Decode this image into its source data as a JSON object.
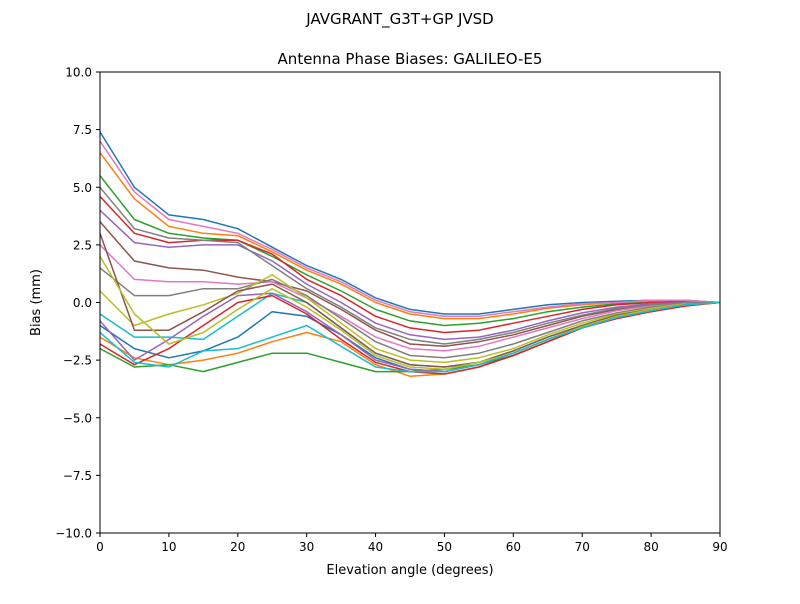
{
  "figure": {
    "suptitle": "JAVGRANT_G3T+GP JVSD"
  },
  "chart_data": {
    "type": "line",
    "title": "Antenna Phase Biases: GALILEO-E5",
    "xlabel": "Elevation angle (degrees)",
    "ylabel": "Bias (mm)",
    "xlim": [
      0,
      90
    ],
    "ylim": [
      -10,
      10
    ],
    "grid": false,
    "legend": "none",
    "xticks": [
      0,
      10,
      20,
      30,
      40,
      50,
      60,
      70,
      80,
      90
    ],
    "xtick_labels": [
      "0",
      "10",
      "20",
      "30",
      "40",
      "50",
      "60",
      "70",
      "80",
      "90"
    ],
    "yticks": [
      -10,
      -7.5,
      -5,
      -2.5,
      0,
      2.5,
      5,
      7.5,
      10
    ],
    "ytick_labels": [
      "−10.0",
      "−7.5",
      "−5.0",
      "−2.5",
      "0.0",
      "2.5",
      "5.0",
      "7.5",
      "10.0"
    ],
    "colors": [
      "#1f77b4",
      "#ff7f0e",
      "#2ca02c",
      "#d62728",
      "#9467bd",
      "#8c564b",
      "#e377c2",
      "#7f7f7f",
      "#bcbd22",
      "#17becf"
    ],
    "x": [
      0,
      5,
      10,
      15,
      20,
      25,
      30,
      35,
      40,
      45,
      50,
      55,
      60,
      65,
      70,
      75,
      80,
      85,
      90
    ],
    "series": [
      {
        "values": [
          7.4,
          5.0,
          3.8,
          3.6,
          3.2,
          2.4,
          1.6,
          1.0,
          0.2,
          -0.3,
          -0.5,
          -0.5,
          -0.3,
          -0.1,
          0.0,
          0.05,
          0.1,
          0.1,
          0
        ]
      },
      {
        "values": [
          6.5,
          4.5,
          3.3,
          3.0,
          2.9,
          2.2,
          1.4,
          0.8,
          0.0,
          -0.5,
          -0.7,
          -0.7,
          -0.5,
          -0.25,
          -0.1,
          0.0,
          0.05,
          0.05,
          0
        ]
      },
      {
        "values": [
          5.5,
          3.6,
          3.0,
          2.8,
          2.7,
          2.0,
          1.2,
          0.5,
          -0.3,
          -0.8,
          -1.0,
          -0.9,
          -0.7,
          -0.4,
          -0.2,
          -0.05,
          0.0,
          0.05,
          0
        ]
      },
      {
        "values": [
          4.6,
          3.0,
          2.6,
          2.7,
          2.7,
          2.1,
          1.0,
          0.3,
          -0.6,
          -1.1,
          -1.3,
          -1.2,
          -0.9,
          -0.6,
          -0.3,
          -0.1,
          0.0,
          0.0,
          0
        ]
      },
      {
        "values": [
          4.0,
          2.6,
          2.4,
          2.5,
          2.5,
          1.8,
          0.8,
          0.0,
          -0.9,
          -1.4,
          -1.6,
          -1.5,
          -1.2,
          -0.8,
          -0.45,
          -0.2,
          -0.05,
          0.0,
          0
        ]
      },
      {
        "values": [
          3.5,
          1.8,
          1.5,
          1.4,
          1.1,
          0.9,
          0.5,
          -0.3,
          -1.2,
          -1.8,
          -1.9,
          -1.7,
          -1.4,
          -1.0,
          -0.6,
          -0.3,
          -0.1,
          0,
          0
        ]
      },
      {
        "values": [
          2.5,
          1.0,
          0.9,
          0.9,
          0.8,
          0.9,
          0.2,
          -0.6,
          -1.5,
          -2.0,
          -2.1,
          -1.9,
          -1.5,
          -1.1,
          -0.7,
          -0.35,
          -0.15,
          0,
          0
        ]
      },
      {
        "values": [
          1.5,
          0.3,
          0.3,
          0.6,
          0.6,
          1.0,
          0.3,
          -0.7,
          -1.7,
          -2.3,
          -2.4,
          -2.2,
          -1.8,
          -1.3,
          -0.8,
          -0.45,
          -0.2,
          -0.05,
          0
        ]
      },
      {
        "values": [
          0.5,
          -1.0,
          -0.5,
          -0.1,
          0.4,
          1.2,
          0.2,
          -0.9,
          -2.0,
          -2.5,
          -2.6,
          -2.4,
          -2.0,
          -1.4,
          -0.9,
          -0.5,
          -0.25,
          -0.05,
          0
        ]
      },
      {
        "values": [
          -0.5,
          -1.5,
          -1.5,
          -1.6,
          -0.6,
          0.4,
          0.0,
          -1.1,
          -2.2,
          -2.7,
          -2.8,
          -2.6,
          -2.1,
          -1.5,
          -1.0,
          -0.55,
          -0.3,
          -0.1,
          0
        ]
      },
      {
        "values": [
          -1.0,
          -2.0,
          -2.4,
          -2.1,
          -1.5,
          -0.4,
          -0.6,
          -1.4,
          -2.4,
          -2.9,
          -3.0,
          -2.7,
          -2.2,
          -1.6,
          -1.05,
          -0.6,
          -0.3,
          -0.1,
          0
        ]
      },
      {
        "values": [
          -1.5,
          -2.4,
          -2.7,
          -2.5,
          -2.2,
          -1.7,
          -1.3,
          -1.7,
          -2.7,
          -3.2,
          -3.1,
          -2.8,
          -2.3,
          -1.7,
          -1.1,
          -0.65,
          -0.35,
          -0.1,
          0
        ]
      },
      {
        "values": [
          -2.0,
          -2.8,
          -2.7,
          -3.0,
          -2.6,
          -2.2,
          -2.2,
          -2.6,
          -3.0,
          -3.0,
          -2.9,
          -2.7,
          -2.3,
          -1.7,
          -1.1,
          -0.65,
          -0.35,
          -0.1,
          0
        ]
      },
      {
        "values": [
          -1.8,
          -2.7,
          -2.0,
          -1.0,
          0.0,
          0.3,
          -0.5,
          -1.6,
          -2.6,
          -3.0,
          -3.1,
          -2.8,
          -2.3,
          -1.7,
          -1.1,
          -0.7,
          -0.4,
          -0.15,
          0
        ]
      },
      {
        "values": [
          -0.8,
          -2.5,
          -1.6,
          -0.6,
          0.3,
          0.4,
          -0.4,
          -1.4,
          -2.5,
          -2.9,
          -3.0,
          -2.7,
          -2.2,
          -1.6,
          -1.05,
          -0.65,
          -0.35,
          -0.1,
          0
        ]
      },
      {
        "values": [
          3.0,
          -1.2,
          -1.2,
          -0.4,
          0.5,
          0.8,
          0.0,
          -1.1,
          -2.2,
          -2.7,
          -2.8,
          -2.6,
          -2.1,
          -1.5,
          -1.0,
          -0.55,
          -0.3,
          -0.1,
          0
        ]
      },
      {
        "values": [
          7.0,
          4.8,
          3.6,
          3.3,
          3.0,
          2.3,
          1.5,
          0.9,
          0.1,
          -0.4,
          -0.6,
          -0.6,
          -0.4,
          -0.2,
          -0.05,
          0.0,
          0.1,
          0.1,
          0
        ]
      },
      {
        "values": [
          5.0,
          3.2,
          2.8,
          2.7,
          2.6,
          1.6,
          0.6,
          -0.2,
          -1.1,
          -1.6,
          -1.8,
          -1.6,
          -1.3,
          -0.9,
          -0.55,
          -0.25,
          -0.1,
          0,
          0
        ]
      },
      {
        "values": [
          2.0,
          -0.5,
          -1.8,
          -1.3,
          -0.3,
          0.6,
          -0.2,
          -1.2,
          -2.3,
          -2.8,
          -2.9,
          -2.6,
          -2.2,
          -1.6,
          -1.05,
          -0.6,
          -0.3,
          -0.1,
          0
        ]
      },
      {
        "values": [
          -1.3,
          -2.6,
          -2.8,
          -2.1,
          -2.0,
          -1.5,
          -1.0,
          -1.9,
          -2.8,
          -3.0,
          -3.0,
          -2.7,
          -2.2,
          -1.6,
          -1.1,
          -0.65,
          -0.35,
          -0.1,
          0
        ]
      }
    ]
  }
}
